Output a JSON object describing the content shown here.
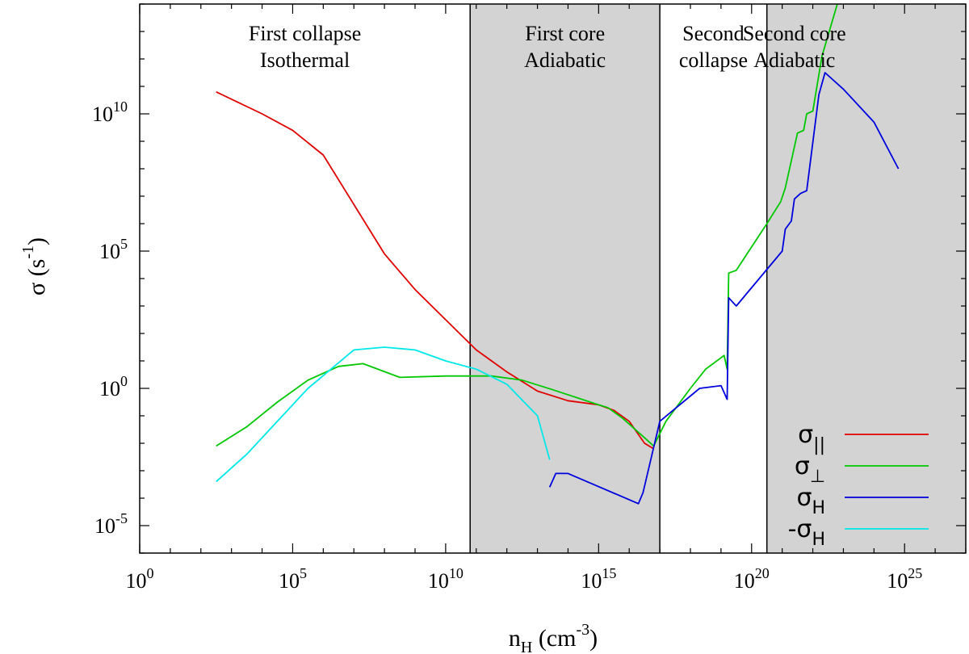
{
  "chart_data": {
    "type": "line",
    "xscale": "log",
    "yscale": "log",
    "xlim_exp": [
      0,
      27
    ],
    "ylim_exp": [
      -6,
      14
    ],
    "xticks": [
      {
        "base": "10",
        "exp": "0",
        "v": 0
      },
      {
        "base": "10",
        "exp": "5",
        "v": 5
      },
      {
        "base": "10",
        "exp": "10",
        "v": 10
      },
      {
        "base": "10",
        "exp": "15",
        "v": 15
      },
      {
        "base": "10",
        "exp": "20",
        "v": 20
      },
      {
        "base": "10",
        "exp": "25",
        "v": 25
      }
    ],
    "yticks": [
      {
        "base": "10",
        "exp": "-5",
        "v": -5
      },
      {
        "base": "10",
        "exp": "0",
        "v": 0
      },
      {
        "base": "10",
        "exp": "5",
        "v": 5
      },
      {
        "base": "10",
        "exp": "10",
        "v": 10
      }
    ],
    "xlabel": {
      "main": "n",
      "sub": "H",
      "rest": " (cm",
      "sup": "-3",
      "end": ")"
    },
    "ylabel": {
      "main": "σ (s",
      "sup": "-1",
      "end": ")"
    },
    "regions": [
      {
        "name": "first-collapse",
        "x0": 0,
        "x1": 10.8,
        "shaded": false,
        "lines": [
          "First collapse",
          "Isothermal"
        ]
      },
      {
        "name": "first-core",
        "x0": 10.8,
        "x1": 17,
        "shaded": true,
        "lines": [
          "First core",
          "Adiabatic"
        ]
      },
      {
        "name": "second-collapse",
        "x0": 17,
        "x1": 20.5,
        "shaded": false,
        "lines": [
          "Second",
          "collapse"
        ]
      },
      {
        "name": "second-core",
        "x0": 20.5,
        "x1": 27,
        "shaded": true,
        "lines": [
          "Second core",
          "Adiabatic"
        ]
      }
    ],
    "series": [
      {
        "name": "sigma-parallel",
        "legend": {
          "base": "σ",
          "sub": "||"
        },
        "color": "#e00000",
        "points": [
          [
            2.5,
            10.8
          ],
          [
            4,
            10
          ],
          [
            5,
            9.4
          ],
          [
            6,
            8.5
          ],
          [
            7,
            6.7
          ],
          [
            8,
            4.9
          ],
          [
            9,
            3.6
          ],
          [
            10,
            2.5
          ],
          [
            11,
            1.4
          ],
          [
            12,
            0.6
          ],
          [
            13,
            -0.1
          ],
          [
            14,
            -0.45
          ],
          [
            15,
            -0.6
          ],
          [
            15.5,
            -0.8
          ],
          [
            16,
            -1.2
          ],
          [
            16.5,
            -2
          ],
          [
            16.8,
            -2.2
          ]
        ]
      },
      {
        "name": "sigma-perp",
        "legend": {
          "base": "σ",
          "sub": "⊥"
        },
        "color": "#00c800",
        "points": [
          [
            2.5,
            -2.1
          ],
          [
            3.5,
            -1.4
          ],
          [
            4.5,
            -0.5
          ],
          [
            5.5,
            0.3
          ],
          [
            6.5,
            0.8
          ],
          [
            7.3,
            0.9
          ],
          [
            8.5,
            0.4
          ],
          [
            10,
            0.45
          ],
          [
            11.5,
            0.45
          ],
          [
            12.5,
            0.3
          ],
          [
            13.5,
            -0.05
          ],
          [
            15,
            -0.6
          ],
          [
            15.3,
            -0.7
          ],
          [
            15.8,
            -1.1
          ],
          [
            16.5,
            -1.8
          ],
          [
            16.8,
            -2.1
          ],
          [
            17.2,
            -1.2
          ],
          [
            18,
            0
          ],
          [
            18.5,
            0.7
          ],
          [
            19.1,
            1.2
          ],
          [
            19.2,
            0.7
          ],
          [
            19.25,
            4.2
          ],
          [
            19.5,
            4.3
          ],
          [
            20.5,
            6
          ],
          [
            20.95,
            6.8
          ],
          [
            21.1,
            7.3
          ],
          [
            21.4,
            8.8
          ],
          [
            21.5,
            9.3
          ],
          [
            21.7,
            9.4
          ],
          [
            21.8,
            10
          ],
          [
            22,
            10.1
          ],
          [
            22.3,
            12.1
          ],
          [
            22.8,
            14
          ]
        ]
      },
      {
        "name": "sigma-hall",
        "legend": {
          "base": "σ",
          "sub": "H"
        },
        "color": "#0000dd",
        "points": [
          [
            13.4,
            -3.6
          ],
          [
            13.6,
            -3.1
          ],
          [
            14,
            -3.1
          ],
          [
            16.3,
            -4.2
          ],
          [
            16.45,
            -3.8
          ],
          [
            17,
            -1.2
          ],
          [
            18.3,
            0
          ],
          [
            19,
            0.1
          ],
          [
            19.2,
            -0.4
          ],
          [
            19.25,
            3.3
          ],
          [
            19.5,
            3
          ],
          [
            21,
            5
          ],
          [
            21.1,
            5.8
          ],
          [
            21.3,
            6.1
          ],
          [
            21.4,
            6.9
          ],
          [
            21.6,
            7.1
          ],
          [
            21.8,
            7.2
          ],
          [
            22.2,
            10.7
          ],
          [
            22.4,
            11.5
          ],
          [
            23,
            10.9
          ],
          [
            24,
            9.7
          ],
          [
            24.8,
            8
          ]
        ]
      },
      {
        "name": "neg-sigma-hall",
        "legend": {
          "base": "-σ",
          "sub": "H"
        },
        "color": "#00e8e8",
        "points": [
          [
            2.5,
            -3.4
          ],
          [
            3.5,
            -2.4
          ],
          [
            4.5,
            -1.2
          ],
          [
            5.5,
            0
          ],
          [
            7,
            1.4
          ],
          [
            8,
            1.5
          ],
          [
            9,
            1.4
          ],
          [
            10,
            1
          ],
          [
            11,
            0.7
          ],
          [
            12,
            0.15
          ],
          [
            13,
            -1
          ],
          [
            13.4,
            -2.6
          ]
        ]
      }
    ]
  }
}
